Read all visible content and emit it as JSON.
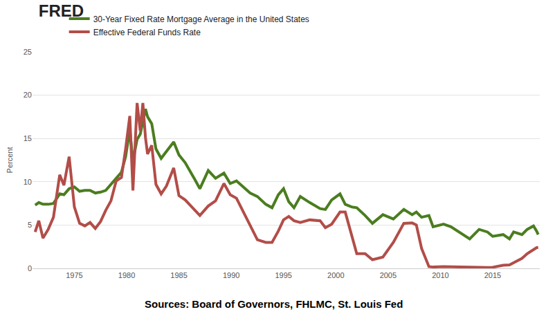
{
  "chart_data": {
    "type": "line",
    "title": "FRED",
    "ylabel": "Percent",
    "annotations": [
      "Sources: Board of Governors, FHLMC, St. Louis Fed"
    ],
    "x": [
      1971.25,
      1971.6,
      1972.0,
      1972.5,
      1973.0,
      1973.6,
      1974.0,
      1974.5,
      1975.0,
      1975.5,
      1976.0,
      1976.5,
      1977.0,
      1977.5,
      1978.0,
      1978.5,
      1979.0,
      1979.5,
      1979.9,
      1980.3,
      1980.6,
      1981.0,
      1981.3,
      1981.55,
      1981.8,
      1982.0,
      1982.4,
      1982.8,
      1983.3,
      1983.8,
      1984.5,
      1985.0,
      1985.6,
      1986.5,
      1987.0,
      1987.8,
      1988.5,
      1989.3,
      1989.9,
      1990.5,
      1991.0,
      1991.8,
      1992.5,
      1993.3,
      1993.9,
      1994.5,
      1995.0,
      1995.5,
      1996.0,
      1996.6,
      1997.5,
      1998.5,
      1999.0,
      1999.6,
      2000.4,
      2000.9,
      2001.5,
      2002.0,
      2002.8,
      2003.5,
      2004.5,
      2005.5,
      2006.5,
      2007.3,
      2007.7,
      2008.2,
      2008.9,
      2009.3,
      2010.3,
      2011.0,
      2012.8,
      2013.7,
      2014.5,
      2015.0,
      2016.0,
      2016.6,
      2017.0,
      2017.8,
      2018.3,
      2018.9,
      2019.2,
      2019.35
    ],
    "series": [
      {
        "name": "30-Year Fixed Rate Mortgage Average in the United States",
        "color": "#4b7d1f",
        "values": [
          7.3,
          7.6,
          7.4,
          7.4,
          7.5,
          8.6,
          8.5,
          9.2,
          9.4,
          8.9,
          9.0,
          9.0,
          8.7,
          8.8,
          9.0,
          9.7,
          10.4,
          11.1,
          12.9,
          16.0,
          12.4,
          14.9,
          15.5,
          17.0,
          18.4,
          17.5,
          16.7,
          13.8,
          12.7,
          13.5,
          14.6,
          13.1,
          12.2,
          10.3,
          9.2,
          11.3,
          10.4,
          11.0,
          9.8,
          10.1,
          9.6,
          8.7,
          8.3,
          7.4,
          7.0,
          8.5,
          9.2,
          7.7,
          7.0,
          8.3,
          7.6,
          6.9,
          6.8,
          7.9,
          8.6,
          7.4,
          7.1,
          7.0,
          6.1,
          5.2,
          6.2,
          5.7,
          6.8,
          6.2,
          6.5,
          5.9,
          6.1,
          4.8,
          5.1,
          4.8,
          3.4,
          4.5,
          4.2,
          3.7,
          3.9,
          3.4,
          4.2,
          3.9,
          4.5,
          4.9,
          4.3,
          3.9
        ]
      },
      {
        "name": "Effective Federal Funds Rate",
        "color": "#b24d48",
        "values": [
          4.2,
          5.5,
          3.5,
          4.5,
          5.9,
          10.8,
          9.6,
          12.9,
          7.1,
          5.2,
          4.9,
          5.3,
          4.6,
          5.4,
          6.7,
          7.8,
          10.1,
          10.5,
          13.8,
          17.6,
          9.0,
          19.1,
          15.9,
          19.1,
          15.1,
          13.2,
          14.2,
          9.7,
          8.6,
          9.5,
          11.6,
          8.4,
          7.9,
          6.8,
          6.1,
          7.2,
          7.8,
          9.8,
          8.5,
          8.1,
          6.9,
          4.9,
          3.3,
          3.0,
          3.0,
          4.3,
          5.6,
          6.0,
          5.5,
          5.3,
          5.6,
          5.5,
          4.7,
          5.1,
          6.5,
          6.5,
          3.9,
          1.7,
          1.7,
          1.0,
          1.3,
          3.0,
          5.2,
          5.25,
          5.0,
          2.3,
          0.2,
          0.15,
          0.2,
          0.17,
          0.15,
          0.08,
          0.09,
          0.12,
          0.36,
          0.4,
          0.66,
          1.15,
          1.7,
          2.2,
          2.4,
          2.4
        ]
      }
    ],
    "xlim": [
      1971,
      2019.5
    ],
    "xticks": [
      1975,
      1980,
      1985,
      1990,
      1995,
      2000,
      2005,
      2010,
      2015
    ],
    "ylim": [
      0,
      25
    ],
    "yticks": [
      0,
      5,
      10,
      15,
      20,
      25
    ],
    "grid": true,
    "legend": "top-left"
  }
}
